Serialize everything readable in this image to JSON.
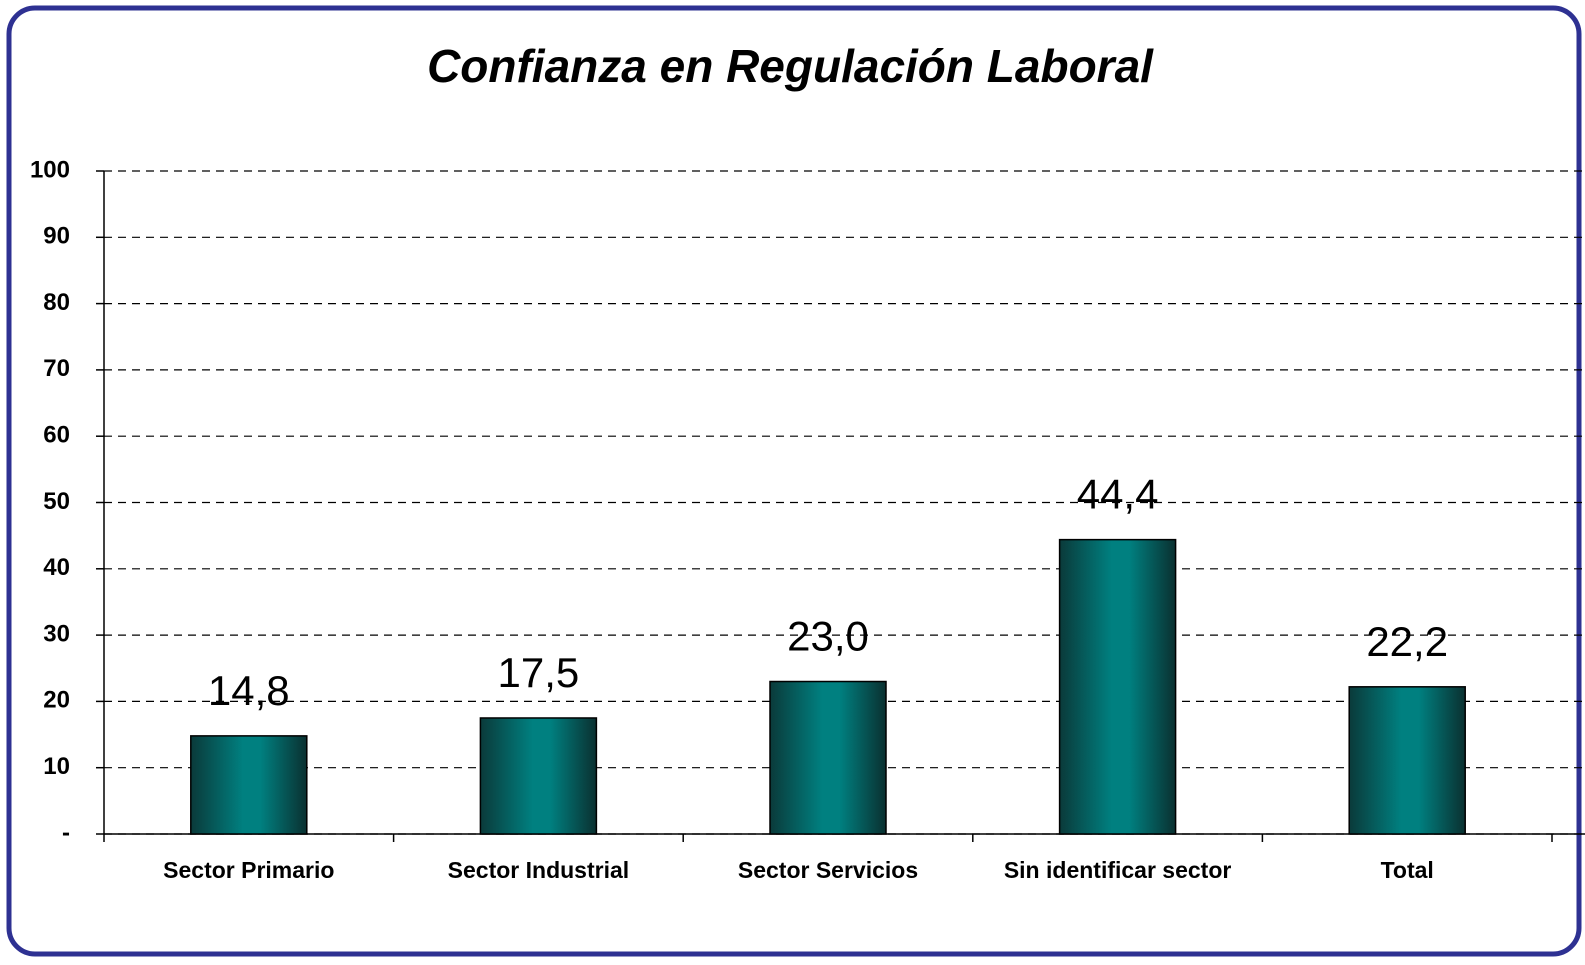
{
  "chart_data": {
    "type": "bar",
    "title": "Confianza en Regulación Laboral",
    "categories": [
      "Sector Primario",
      "Sector Industrial",
      "Sector Servicios",
      "Sin identificar sector",
      "Total"
    ],
    "values": [
      14.8,
      17.5,
      23.0,
      44.4,
      22.2
    ],
    "value_labels": [
      "14,8",
      "17,5",
      "23,0",
      "44,4",
      "22,2"
    ],
    "color": "#008080",
    "ylim": [
      0,
      100
    ],
    "yticks": [
      {
        "value": 0,
        "label": "-"
      },
      10,
      20,
      30,
      40,
      50,
      60,
      70,
      80,
      90,
      100
    ],
    "grid": true
  }
}
